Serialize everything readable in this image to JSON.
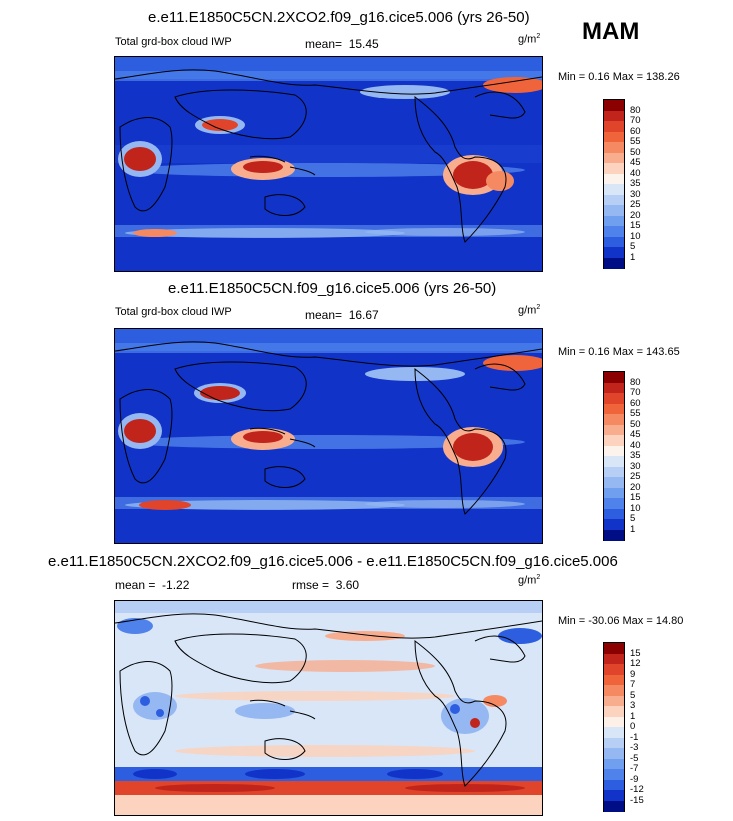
{
  "season": "MAM",
  "unit_base": "g/m",
  "unit_exp": "2",
  "panels": [
    {
      "title": "e.e11.E1850C5CN.2XCO2.f09_g16.cice5.006 (yrs 26-50)",
      "variable": "Total grd-box cloud IWP",
      "stat_label": "mean=",
      "stat_value": "15.45",
      "minmax": "Min =   0.16 Max = 138.26"
    },
    {
      "title": "e.e11.E1850C5CN.f09_g16.cice5.006 (yrs 26-50)",
      "variable": "Total grd-box cloud IWP",
      "stat_label": "mean=",
      "stat_value": "16.67",
      "minmax": "Min =   0.16 Max = 143.65"
    },
    {
      "title": "e.e11.E1850C5CN.2XCO2.f09_g16.cice5.006 - e.e11.E1850C5CN.f09_g16.cice5.006",
      "mean_label": "mean =",
      "mean_value": "-1.22",
      "rmse_label": "rmse =",
      "rmse_value": "3.60",
      "minmax": "Min = -30.06 Max =  14.80"
    }
  ],
  "chart_data": [
    {
      "type": "heatmap",
      "title": "e.e11.E1850C5CN.2XCO2.f09_g16.cice5.006 (yrs 26-50)",
      "subtitle": "Total grd-box cloud IWP",
      "units": "g/m^2",
      "mean": 15.45,
      "min": 0.16,
      "max": 138.26,
      "colorbar_levels": [
        "80",
        "70",
        "60",
        "55",
        "50",
        "45",
        "40",
        "35",
        "30",
        "25",
        "20",
        "15",
        "10",
        "5",
        "1"
      ],
      "colors": [
        "#8b0000",
        "#c0241b",
        "#e0442a",
        "#f0643c",
        "#f58a62",
        "#f8ae8e",
        "#fbd3bf",
        "#fcf4ec",
        "#d8e6f8",
        "#b7cff5",
        "#95b8f2",
        "#719ff0",
        "#4f82ea",
        "#2d5ee0",
        "#1233c8",
        "#000e86"
      ]
    },
    {
      "type": "heatmap",
      "title": "e.e11.E1850C5CN.f09_g16.cice5.006 (yrs 26-50)",
      "subtitle": "Total grd-box cloud IWP",
      "units": "g/m^2",
      "mean": 16.67,
      "min": 0.16,
      "max": 143.65,
      "colorbar_levels": [
        "80",
        "70",
        "60",
        "55",
        "50",
        "45",
        "40",
        "35",
        "30",
        "25",
        "20",
        "15",
        "10",
        "5",
        "1"
      ],
      "colors": [
        "#8b0000",
        "#c0241b",
        "#e0442a",
        "#f0643c",
        "#f58a62",
        "#f8ae8e",
        "#fbd3bf",
        "#fcf4ec",
        "#d8e6f8",
        "#b7cff5",
        "#95b8f2",
        "#719ff0",
        "#4f82ea",
        "#2d5ee0",
        "#1233c8",
        "#000e86"
      ]
    },
    {
      "type": "heatmap",
      "title": "e.e11.E1850C5CN.2XCO2.f09_g16.cice5.006 - e.e11.E1850C5CN.f09_g16.cice5.006",
      "units": "g/m^2",
      "mean": -1.22,
      "rmse": 3.6,
      "min": -30.06,
      "max": 14.8,
      "colorbar_levels": [
        "15",
        "12",
        "9",
        "7",
        "5",
        "3",
        "1",
        "0",
        "-1",
        "-3",
        "-5",
        "-7",
        "-9",
        "-12",
        "-15"
      ],
      "colors": [
        "#8b0000",
        "#c0241b",
        "#e0442a",
        "#f0643c",
        "#f58a62",
        "#f8ae8e",
        "#fbd3bf",
        "#fdf0e6",
        "#d8e6f8",
        "#b7cff5",
        "#95b8f2",
        "#719ff0",
        "#4f82ea",
        "#2d5ee0",
        "#1233c8",
        "#000e86"
      ]
    }
  ]
}
